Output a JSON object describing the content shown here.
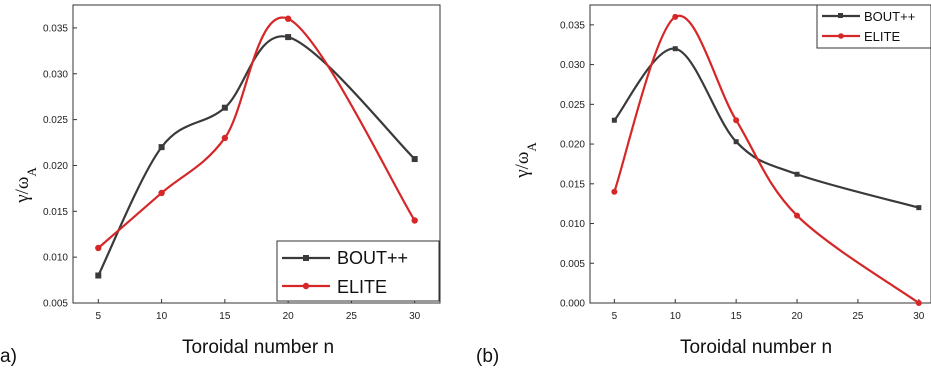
{
  "panels": [
    {
      "tag": "a)"
    },
    {
      "tag": "(b)"
    }
  ],
  "chart_data": [
    {
      "type": "line",
      "panel_label": "a)",
      "xlabel": "Toroidal number n",
      "ylabel": "γ/ω",
      "ylabel_sub": "A",
      "x_ticks": [
        5,
        10,
        15,
        20,
        25,
        30
      ],
      "y_ticks": [
        "0.005",
        "0.010",
        "0.015",
        "0.020",
        "0.025",
        "0.030",
        "0.035"
      ],
      "xlim": [
        3,
        32
      ],
      "ylim": [
        0.005,
        0.0375
      ],
      "legend_position": "bottom-right",
      "series": [
        {
          "name": "BOUT++",
          "color": "#3a3a3a",
          "marker": "square",
          "x": [
            5,
            10,
            15,
            20,
            30
          ],
          "y": [
            0.008,
            0.022,
            0.0263,
            0.034,
            0.0207
          ]
        },
        {
          "name": "ELITE",
          "color": "#d62728",
          "marker": "circle",
          "x": [
            5,
            10,
            15,
            20,
            30
          ],
          "y": [
            0.011,
            0.017,
            0.023,
            0.036,
            0.014
          ]
        }
      ]
    },
    {
      "type": "line",
      "panel_label": "(b)",
      "xlabel": "Toroidal number n",
      "ylabel": "γ/ω",
      "ylabel_sub": "A",
      "x_ticks": [
        5,
        10,
        15,
        20,
        25,
        30
      ],
      "y_ticks": [
        "0.000",
        "0.005",
        "0.010",
        "0.015",
        "0.020",
        "0.025",
        "0.030",
        "0.035"
      ],
      "xlim": [
        3,
        31
      ],
      "ylim": [
        0,
        0.0375
      ],
      "legend_position": "top-right",
      "series": [
        {
          "name": "BOUT++",
          "color": "#3a3a3a",
          "marker": "square",
          "x": [
            5,
            10,
            15,
            20,
            30
          ],
          "y": [
            0.023,
            0.032,
            0.0203,
            0.0162,
            0.012
          ]
        },
        {
          "name": "ELITE",
          "color": "#d62728",
          "marker": "circle",
          "x": [
            5,
            10,
            15,
            20,
            30
          ],
          "y": [
            0.014,
            0.036,
            0.023,
            0.011,
            0.0
          ]
        }
      ]
    }
  ]
}
